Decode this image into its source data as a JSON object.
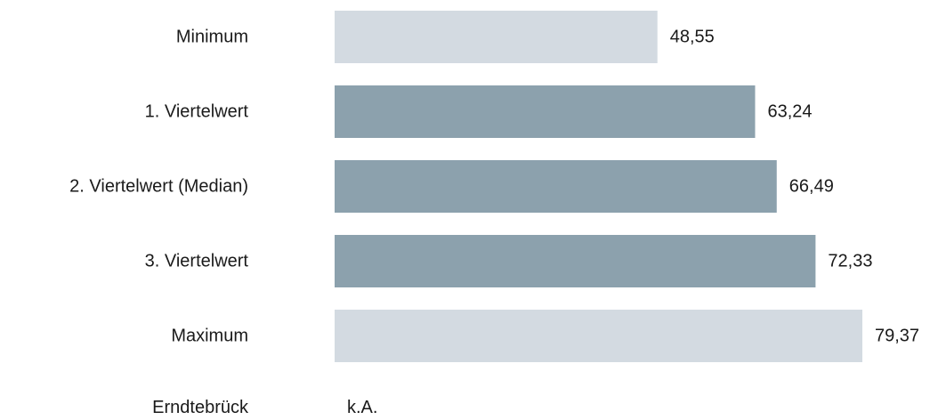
{
  "chart_data": {
    "type": "bar",
    "orientation": "horizontal",
    "categories": [
      "Minimum",
      "1. Viertelwert",
      "2. Viertelwert (Median)",
      "3. Viertelwert",
      "Maximum",
      "Erndtebrück"
    ],
    "values": [
      48.55,
      63.24,
      66.49,
      72.33,
      79.37,
      null
    ],
    "value_labels": [
      "48,55",
      "63,24",
      "66,49",
      "72,33",
      "79,37",
      "k.A."
    ],
    "bar_colors": [
      "#d3dae1",
      "#8ca1ad",
      "#8ca1ad",
      "#8ca1ad",
      "#d3dae1",
      "#ffffff"
    ],
    "xlim": [
      0,
      79.37
    ],
    "grid": false,
    "legend": "none"
  }
}
